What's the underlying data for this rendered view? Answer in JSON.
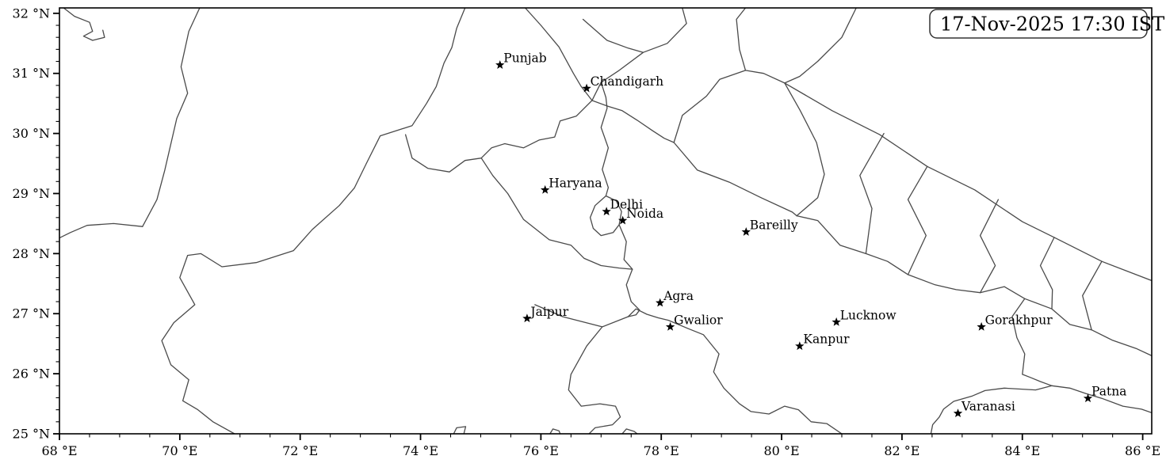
{
  "figure": {
    "title": "Map of northern India with city markers",
    "background": "#ffffff"
  },
  "timestamp": {
    "text": "17-Nov-2025 17:30 IST"
  },
  "map": {
    "extent": {
      "lon_min": 68,
      "lon_max": 86.15,
      "lat_min": 25,
      "lat_max": 32.09
    },
    "axes": {
      "x_tick_values": [
        68,
        70,
        72,
        74,
        76,
        78,
        80,
        82,
        84,
        86
      ],
      "x_tick_labels": [
        "68 °E",
        "70 °E",
        "72 °E",
        "74 °E",
        "76 °E",
        "78 °E",
        "80 °E",
        "82 °E",
        "84 °E",
        "86 °E"
      ],
      "x_minor_step": 0.5,
      "y_tick_values": [
        25,
        26,
        27,
        28,
        29,
        30,
        31,
        32
      ],
      "y_tick_labels": [
        "25 °N",
        "26 °N",
        "27 °N",
        "28 °N",
        "29 °N",
        "30 °N",
        "31 °N",
        "32 °N"
      ],
      "y_minor_step": 0.2
    },
    "style": {
      "border_line_color": "#4a4a4a",
      "spine_color": "#000000",
      "marker_color": "#000000",
      "box_border_color": "#333333"
    }
  },
  "cities": [
    {
      "name": "Punjab",
      "lon": 75.32,
      "lat": 31.14
    },
    {
      "name": "Chandigarh",
      "lon": 76.76,
      "lat": 30.75
    },
    {
      "name": "Haryana",
      "lon": 76.07,
      "lat": 29.06
    },
    {
      "name": "Delhi",
      "lon": 77.09,
      "lat": 28.7
    },
    {
      "name": "Noida",
      "lon": 77.36,
      "lat": 28.55
    },
    {
      "name": "Bareilly",
      "lon": 79.41,
      "lat": 28.36
    },
    {
      "name": "Agra",
      "lon": 77.98,
      "lat": 27.18
    },
    {
      "name": "Jaipur",
      "lon": 75.77,
      "lat": 26.92
    },
    {
      "name": "Gwalior",
      "lon": 78.15,
      "lat": 26.78
    },
    {
      "name": "Lucknow",
      "lon": 80.91,
      "lat": 26.86
    },
    {
      "name": "Kanpur",
      "lon": 80.3,
      "lat": 26.46
    },
    {
      "name": "Gorakhpur",
      "lon": 83.32,
      "lat": 26.78
    },
    {
      "name": "Varanasi",
      "lon": 82.93,
      "lat": 25.34
    },
    {
      "name": "Patna",
      "lon": 85.09,
      "lat": 25.59
    }
  ],
  "borders": [
    {
      "name": "pakistan-province-boundary-north",
      "points": [
        [
          70.33,
          32.09
        ],
        [
          70.15,
          31.7
        ],
        [
          70.02,
          31.11
        ],
        [
          70.13,
          30.67
        ],
        [
          69.95,
          30.25
        ],
        [
          69.75,
          29.39
        ],
        [
          69.62,
          28.9
        ],
        [
          69.38,
          28.45
        ]
      ]
    },
    {
      "name": "pakistan-province-boundary-west",
      "points": [
        [
          69.38,
          28.45
        ],
        [
          68.9,
          28.5
        ],
        [
          68.46,
          28.47
        ],
        [
          68.18,
          28.35
        ],
        [
          68.0,
          28.26
        ]
      ]
    },
    {
      "name": "india-pakistan-border",
      "points": [
        [
          74.74,
          32.09
        ],
        [
          74.6,
          31.75
        ],
        [
          74.52,
          31.43
        ],
        [
          74.39,
          31.17
        ],
        [
          74.26,
          30.78
        ],
        [
          74.1,
          30.5
        ],
        [
          73.86,
          30.13
        ],
        [
          73.33,
          29.96
        ],
        [
          73.1,
          29.5
        ],
        [
          72.9,
          29.09
        ],
        [
          72.65,
          28.8
        ],
        [
          72.2,
          28.4
        ],
        [
          71.89,
          28.05
        ],
        [
          71.27,
          27.85
        ],
        [
          70.7,
          27.78
        ],
        [
          70.35,
          28.0
        ],
        [
          70.13,
          27.97
        ],
        [
          70.0,
          27.6
        ],
        [
          70.25,
          27.15
        ],
        [
          69.9,
          26.85
        ],
        [
          69.7,
          26.55
        ],
        [
          69.85,
          26.15
        ],
        [
          70.15,
          25.9
        ],
        [
          70.05,
          25.55
        ],
        [
          70.3,
          25.4
        ],
        [
          70.55,
          25.2
        ],
        [
          70.91,
          25.0
        ]
      ]
    },
    {
      "name": "punjab-state-east-boundary",
      "points": [
        [
          75.74,
          32.09
        ],
        [
          76.0,
          31.8
        ],
        [
          76.3,
          31.44
        ],
        [
          76.54,
          31.0
        ],
        [
          76.67,
          30.78
        ],
        [
          76.85,
          30.55
        ],
        [
          76.59,
          30.29
        ],
        [
          76.32,
          30.21
        ],
        [
          76.23,
          29.94
        ],
        [
          75.97,
          29.89
        ],
        [
          75.71,
          29.76
        ],
        [
          75.4,
          29.83
        ],
        [
          75.18,
          29.76
        ],
        [
          75.01,
          29.59
        ],
        [
          74.74,
          29.55
        ],
        [
          74.48,
          29.36
        ],
        [
          74.12,
          29.42
        ],
        [
          73.86,
          29.59
        ],
        [
          73.75,
          29.98
        ]
      ]
    },
    {
      "name": "himachal-south-boundary",
      "points": [
        [
          76.85,
          30.55
        ],
        [
          77.12,
          30.45
        ],
        [
          77.35,
          30.38
        ],
        [
          77.6,
          30.22
        ],
        [
          77.85,
          30.05
        ],
        [
          78.05,
          29.92
        ],
        [
          78.21,
          29.85
        ]
      ]
    },
    {
      "name": "haryana-up-yamuna-boundary",
      "points": [
        [
          77.0,
          30.85
        ],
        [
          77.08,
          30.6
        ],
        [
          77.1,
          30.42
        ],
        [
          77.0,
          30.1
        ],
        [
          77.12,
          29.76
        ],
        [
          77.02,
          29.4
        ],
        [
          77.12,
          29.1
        ],
        [
          77.08,
          28.96
        ]
      ]
    },
    {
      "name": "delhi-outline",
      "points": [
        [
          77.08,
          28.96
        ],
        [
          77.25,
          28.88
        ],
        [
          77.34,
          28.7
        ],
        [
          77.3,
          28.48
        ],
        [
          77.2,
          28.35
        ],
        [
          77.0,
          28.3
        ],
        [
          76.87,
          28.42
        ],
        [
          76.82,
          28.6
        ],
        [
          76.9,
          28.8
        ],
        [
          77.08,
          28.96
        ]
      ]
    },
    {
      "name": "haryana-rajasthan-boundary",
      "points": [
        [
          75.01,
          29.59
        ],
        [
          75.2,
          29.3
        ],
        [
          75.45,
          29.0
        ],
        [
          75.71,
          28.57
        ],
        [
          76.14,
          28.23
        ],
        [
          76.5,
          28.14
        ],
        [
          76.72,
          27.92
        ],
        [
          77.0,
          27.8
        ],
        [
          77.3,
          27.76
        ],
        [
          77.52,
          27.74
        ]
      ]
    },
    {
      "name": "up-rajasthan-boundary",
      "points": [
        [
          77.3,
          28.48
        ],
        [
          77.42,
          28.2
        ],
        [
          77.38,
          27.9
        ],
        [
          77.52,
          27.74
        ],
        [
          77.42,
          27.48
        ],
        [
          77.5,
          27.2
        ],
        [
          77.64,
          27.06
        ],
        [
          77.58,
          26.98
        ],
        [
          77.45,
          26.95
        ]
      ]
    },
    {
      "name": "rajasthan-mp-west-branch",
      "points": [
        [
          75.9,
          27.15
        ],
        [
          76.36,
          26.95
        ],
        [
          77.02,
          26.78
        ],
        [
          77.45,
          26.95
        ]
      ]
    },
    {
      "name": "rajasthan-mp-boundary",
      "points": [
        [
          77.02,
          26.78
        ],
        [
          76.76,
          26.46
        ],
        [
          76.5,
          25.99
        ],
        [
          76.46,
          25.73
        ],
        [
          76.67,
          25.46
        ],
        [
          76.98,
          25.5
        ],
        [
          77.24,
          25.46
        ],
        [
          77.32,
          25.28
        ],
        [
          77.19,
          25.15
        ],
        [
          76.9,
          25.1
        ],
        [
          76.8,
          25.0
        ]
      ]
    },
    {
      "name": "mp-up-boundary",
      "points": [
        [
          77.45,
          26.95
        ],
        [
          77.58,
          27.08
        ],
        [
          77.76,
          26.99
        ],
        [
          77.95,
          26.93
        ],
        [
          78.12,
          26.89
        ],
        [
          78.45,
          26.75
        ],
        [
          78.7,
          26.65
        ],
        [
          78.96,
          26.33
        ],
        [
          78.87,
          26.03
        ],
        [
          79.04,
          25.76
        ],
        [
          79.3,
          25.5
        ],
        [
          79.49,
          25.37
        ],
        [
          79.79,
          25.33
        ],
        [
          80.05,
          25.46
        ],
        [
          80.28,
          25.4
        ],
        [
          80.49,
          25.2
        ],
        [
          80.75,
          25.17
        ],
        [
          81.0,
          25.0
        ]
      ]
    },
    {
      "name": "uttarakhand-west-north-boundary",
      "points": [
        [
          78.21,
          29.85
        ],
        [
          78.35,
          30.3
        ],
        [
          78.75,
          30.62
        ],
        [
          78.97,
          30.9
        ],
        [
          79.4,
          31.05
        ],
        [
          79.7,
          31.0
        ],
        [
          80.05,
          30.84
        ]
      ]
    },
    {
      "name": "uttarakhand-up-boundary",
      "points": [
        [
          78.21,
          29.85
        ],
        [
          78.6,
          29.39
        ],
        [
          79.13,
          29.19
        ],
        [
          79.66,
          28.93
        ],
        [
          80.18,
          28.69
        ],
        [
          80.25,
          28.63
        ]
      ]
    },
    {
      "name": "nepal-west-border",
      "points": [
        [
          80.05,
          30.84
        ],
        [
          80.31,
          30.38
        ],
        [
          80.58,
          29.85
        ],
        [
          80.71,
          29.32
        ],
        [
          80.6,
          28.93
        ],
        [
          80.25,
          28.63
        ]
      ]
    },
    {
      "name": "nepal-south-border",
      "points": [
        [
          80.25,
          28.63
        ],
        [
          80.6,
          28.55
        ],
        [
          80.97,
          28.14
        ],
        [
          81.4,
          28.0
        ],
        [
          81.76,
          27.87
        ],
        [
          82.1,
          27.65
        ],
        [
          82.55,
          27.48
        ],
        [
          82.9,
          27.4
        ],
        [
          83.3,
          27.35
        ],
        [
          83.7,
          27.45
        ],
        [
          84.04,
          27.25
        ],
        [
          84.49,
          27.08
        ],
        [
          84.79,
          26.82
        ],
        [
          85.15,
          26.73
        ],
        [
          85.49,
          26.56
        ],
        [
          85.89,
          26.42
        ],
        [
          86.15,
          26.3
        ]
      ]
    },
    {
      "name": "nepal-north-border",
      "points": [
        [
          80.05,
          30.84
        ],
        [
          80.84,
          30.38
        ],
        [
          81.63,
          29.98
        ],
        [
          82.42,
          29.45
        ],
        [
          83.21,
          29.06
        ],
        [
          84.0,
          28.53
        ],
        [
          84.53,
          28.27
        ],
        [
          85.32,
          27.87
        ],
        [
          86.15,
          27.55
        ]
      ]
    },
    {
      "name": "nepal-province-line-1",
      "points": [
        [
          81.7,
          30.0
        ],
        [
          81.3,
          29.3
        ],
        [
          81.5,
          28.75
        ],
        [
          81.4,
          28.0
        ]
      ]
    },
    {
      "name": "nepal-province-line-2",
      "points": [
        [
          82.42,
          29.45
        ],
        [
          82.1,
          28.9
        ],
        [
          82.4,
          28.3
        ],
        [
          82.1,
          27.65
        ]
      ]
    },
    {
      "name": "nepal-province-line-3",
      "points": [
        [
          83.6,
          28.9
        ],
        [
          83.3,
          28.3
        ],
        [
          83.55,
          27.8
        ],
        [
          83.3,
          27.35
        ]
      ]
    },
    {
      "name": "nepal-province-line-4",
      "points": [
        [
          84.53,
          28.27
        ],
        [
          84.3,
          27.8
        ],
        [
          84.5,
          27.4
        ],
        [
          84.49,
          27.08
        ]
      ]
    },
    {
      "name": "nepal-province-line-5",
      "points": [
        [
          85.32,
          27.87
        ],
        [
          85.0,
          27.3
        ],
        [
          85.15,
          26.73
        ]
      ]
    },
    {
      "name": "up-bihar-boundary",
      "points": [
        [
          84.04,
          27.25
        ],
        [
          83.83,
          26.95
        ],
        [
          83.91,
          26.6
        ],
        [
          84.04,
          26.33
        ],
        [
          84.0,
          25.99
        ],
        [
          84.13,
          25.94
        ],
        [
          84.3,
          25.87
        ],
        [
          84.49,
          25.8
        ]
      ]
    },
    {
      "name": "up-boundary-southwest",
      "points": [
        [
          84.49,
          25.8
        ],
        [
          84.22,
          25.73
        ],
        [
          83.7,
          25.76
        ],
        [
          83.38,
          25.72
        ],
        [
          83.17,
          25.63
        ],
        [
          82.86,
          25.54
        ],
        [
          82.69,
          25.41
        ],
        [
          82.62,
          25.28
        ],
        [
          82.51,
          25.15
        ],
        [
          82.48,
          25.0
        ]
      ]
    },
    {
      "name": "bihar-south-boundary",
      "points": [
        [
          84.49,
          25.8
        ],
        [
          84.79,
          25.76
        ],
        [
          85.06,
          25.67
        ],
        [
          85.32,
          25.59
        ],
        [
          85.67,
          25.46
        ],
        [
          85.98,
          25.41
        ],
        [
          86.15,
          25.35
        ]
      ]
    },
    {
      "name": "himachal-north-line",
      "points": [
        [
          76.7,
          31.9
        ],
        [
          77.1,
          31.55
        ],
        [
          77.45,
          31.42
        ],
        [
          77.7,
          31.35
        ],
        [
          78.1,
          31.5
        ],
        [
          78.42,
          31.83
        ],
        [
          78.35,
          32.09
        ]
      ]
    },
    {
      "name": "himachal-inner-line",
      "points": [
        [
          77.7,
          31.35
        ],
        [
          77.3,
          31.05
        ],
        [
          77.0,
          30.85
        ],
        [
          76.85,
          30.55
        ]
      ]
    },
    {
      "name": "uttarakhand-north-line",
      "points": [
        [
          79.4,
          31.05
        ],
        [
          79.3,
          31.4
        ],
        [
          79.25,
          31.9
        ],
        [
          79.4,
          32.09
        ]
      ]
    },
    {
      "name": "tibet-border-line",
      "points": [
        [
          81.24,
          32.09
        ],
        [
          81.0,
          31.6
        ],
        [
          80.6,
          31.2
        ],
        [
          80.3,
          30.95
        ],
        [
          80.05,
          30.84
        ]
      ]
    },
    {
      "name": "northwest-squiggle",
      "points": [
        [
          68.07,
          32.09
        ],
        [
          68.25,
          31.95
        ],
        [
          68.5,
          31.85
        ],
        [
          68.55,
          31.7
        ],
        [
          68.4,
          31.62
        ],
        [
          68.55,
          31.55
        ],
        [
          68.75,
          31.6
        ],
        [
          68.72,
          31.72
        ]
      ]
    },
    {
      "name": "bottom-edge-squiggle-1",
      "points": [
        [
          74.55,
          25.0
        ],
        [
          74.6,
          25.1
        ],
        [
          74.75,
          25.12
        ],
        [
          74.72,
          25.0
        ]
      ]
    },
    {
      "name": "bottom-edge-squiggle-2",
      "points": [
        [
          76.15,
          25.0
        ],
        [
          76.2,
          25.08
        ],
        [
          76.3,
          25.05
        ],
        [
          76.32,
          25.0
        ]
      ]
    },
    {
      "name": "bottom-edge-squiggle-3",
      "points": [
        [
          77.35,
          25.0
        ],
        [
          77.42,
          25.08
        ],
        [
          77.55,
          25.04
        ],
        [
          77.6,
          25.0
        ]
      ]
    }
  ]
}
